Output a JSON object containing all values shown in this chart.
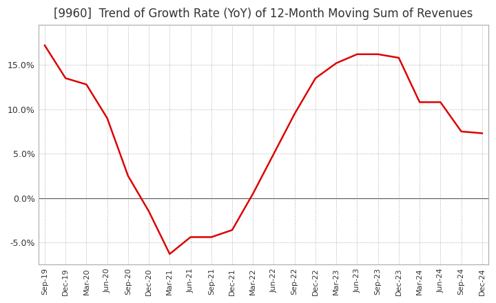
{
  "title": "[9960]  Trend of Growth Rate (YoY) of 12-Month Moving Sum of Revenues",
  "title_fontsize": 12,
  "background_color": "#ffffff",
  "plot_bg_color": "#ffffff",
  "line_color": "#dd0000",
  "line_width": 1.8,
  "x_labels": [
    "Sep-19",
    "Dec-19",
    "Mar-20",
    "Jun-20",
    "Sep-20",
    "Dec-20",
    "Mar-21",
    "Jun-21",
    "Sep-21",
    "Dec-21",
    "Mar-22",
    "Jun-22",
    "Sep-22",
    "Dec-22",
    "Mar-23",
    "Jun-23",
    "Sep-23",
    "Dec-23",
    "Mar-24",
    "Jun-24",
    "Sep-24",
    "Dec-24"
  ],
  "y_values": [
    17.2,
    13.5,
    12.8,
    9.0,
    2.5,
    -1.5,
    -6.3,
    -4.4,
    -4.4,
    -3.6,
    0.5,
    5.0,
    9.5,
    13.5,
    15.2,
    16.2,
    16.2,
    15.8,
    10.8,
    10.8,
    7.5,
    7.3
  ],
  "ylim": [
    -7.5,
    19.5
  ],
  "yticks": [
    -5.0,
    0.0,
    5.0,
    10.0,
    15.0
  ],
  "grid_color": "#aaaaaa",
  "zero_line_color": "#555555"
}
